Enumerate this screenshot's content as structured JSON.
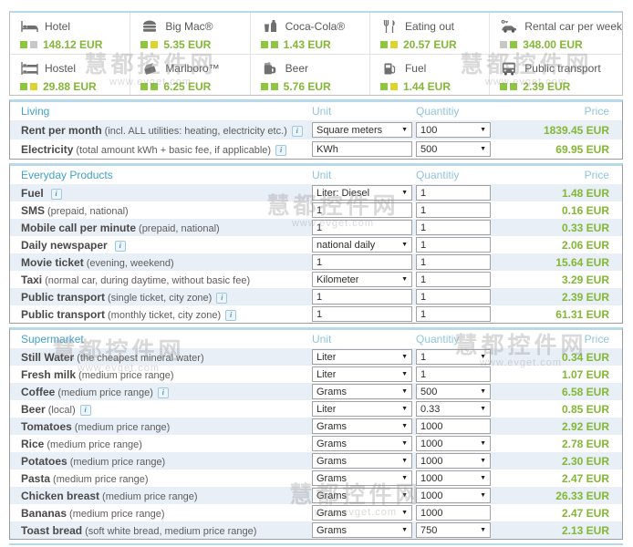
{
  "colors": {
    "green": "#8dc63f",
    "yellow": "#ded42e",
    "gray": "#c7c7c7",
    "price_green": "#83b735",
    "header_blue": "#44a0c9"
  },
  "tiles": [
    {
      "icon": "bed-icon",
      "name": "Hotel",
      "price": "148.12 EUR",
      "indicators": [
        "green",
        "gray"
      ]
    },
    {
      "icon": "burger-icon",
      "name": "Big Mac®",
      "price": "5.35 EUR",
      "indicators": [
        "green",
        "yellow"
      ]
    },
    {
      "icon": "cola-icon",
      "name": "Coca-Cola®",
      "price": "1.43 EUR",
      "indicators": [
        "green",
        "green"
      ]
    },
    {
      "icon": "cutlery-icon",
      "name": "Eating out",
      "price": "20.57 EUR",
      "indicators": [
        "green",
        "yellow"
      ]
    },
    {
      "icon": "car-icon",
      "name": "Rental car per week",
      "price": "348.00 EUR",
      "indicators": [
        "gray",
        "green"
      ]
    },
    {
      "icon": "bunkbed-icon",
      "name": "Hostel",
      "price": "29.88 EUR",
      "indicators": [
        "green",
        "yellow"
      ]
    },
    {
      "icon": "cigarettes-icon",
      "name": "Marlboro™",
      "price": "6.25 EUR",
      "indicators": [
        "green",
        "green"
      ]
    },
    {
      "icon": "beer-icon",
      "name": "Beer",
      "price": "5.76 EUR",
      "indicators": [
        "green",
        "green"
      ]
    },
    {
      "icon": "fuel-icon",
      "name": "Fuel",
      "price": "1.44 EUR",
      "indicators": [
        "green",
        "yellow"
      ]
    },
    {
      "icon": "bus-icon",
      "name": "Public transport",
      "price": "2.39 EUR",
      "indicators": [
        "green",
        "green"
      ]
    }
  ],
  "table_headers": {
    "unit": "Unit",
    "quantity": "Quantitiy",
    "price": "Price"
  },
  "sections": [
    {
      "title": "Living",
      "rows": [
        {
          "label": "Rent per month",
          "note": "(incl. ALL utilities: heating, electricity etc.)",
          "info": true,
          "unit_type": "select",
          "unit_value": "Square meters",
          "qty_type": "select",
          "qty_value": "100",
          "price": "1839.45 EUR"
        },
        {
          "label": "Electricity",
          "note": "(total amount kWh + basic fee, if applicable)",
          "info": true,
          "unit_type": "input",
          "unit_value": "KWh",
          "qty_type": "select",
          "qty_value": "500",
          "price": "69.95 EUR"
        }
      ]
    },
    {
      "title": "Everyday Products",
      "rows": [
        {
          "label": "Fuel",
          "note": "",
          "info": true,
          "unit_type": "select",
          "unit_value": "Liter: Diesel",
          "qty_type": "input",
          "qty_value": "1",
          "price": "1.48 EUR"
        },
        {
          "label": "SMS",
          "note": "(prepaid, national)",
          "info": false,
          "unit_type": "input",
          "unit_value": "1",
          "qty_type": "input",
          "qty_value": "1",
          "price": "0.16 EUR"
        },
        {
          "label": "Mobile call per minute",
          "note": "(prepaid, national)",
          "info": false,
          "unit_type": "input",
          "unit_value": "1",
          "qty_type": "input",
          "qty_value": "1",
          "price": "0.33 EUR"
        },
        {
          "label": "Daily newspaper",
          "note": "",
          "info": true,
          "unit_type": "select",
          "unit_value": "national daily",
          "qty_type": "input",
          "qty_value": "1",
          "price": "2.06 EUR"
        },
        {
          "label": "Movie ticket",
          "note": "(evening, weekend)",
          "info": false,
          "unit_type": "input",
          "unit_value": "1",
          "qty_type": "input",
          "qty_value": "1",
          "price": "15.64 EUR"
        },
        {
          "label": "Taxi",
          "note": "(normal car, during daytime, without basic fee)",
          "info": false,
          "unit_type": "select",
          "unit_value": "Kilometer",
          "qty_type": "input",
          "qty_value": "1",
          "price": "3.29 EUR"
        },
        {
          "label": "Public transport",
          "note": "(single ticket, city zone)",
          "info": true,
          "unit_type": "input",
          "unit_value": "1",
          "qty_type": "input",
          "qty_value": "1",
          "price": "2.39 EUR"
        },
        {
          "label": "Public transport",
          "note": "(monthly ticket, city zone)",
          "info": true,
          "unit_type": "input",
          "unit_value": "1",
          "qty_type": "input",
          "qty_value": "1",
          "price": "61.31 EUR"
        }
      ]
    },
    {
      "title": "Supermarket",
      "rows": [
        {
          "label": "Still Water",
          "note": "(the cheapest mineral water)",
          "info": false,
          "unit_type": "select",
          "unit_value": "Liter",
          "qty_type": "select",
          "qty_value": "1",
          "price": "0.34 EUR"
        },
        {
          "label": "Fresh milk",
          "note": "(medium price range)",
          "info": false,
          "unit_type": "select",
          "unit_value": "Liter",
          "qty_type": "input",
          "qty_value": "1",
          "price": "1.07 EUR"
        },
        {
          "label": "Coffee",
          "note": "(medium price range)",
          "info": true,
          "unit_type": "select",
          "unit_value": "Grams",
          "qty_type": "select",
          "qty_value": "500",
          "price": "6.58 EUR"
        },
        {
          "label": "Beer",
          "note": "(local)",
          "info": true,
          "unit_type": "select",
          "unit_value": "Liter",
          "qty_type": "select",
          "qty_value": "0.33",
          "price": "0.85 EUR"
        },
        {
          "label": "Tomatoes",
          "note": "(medium price range)",
          "info": false,
          "unit_type": "select",
          "unit_value": "Grams",
          "qty_type": "input",
          "qty_value": "1000",
          "price": "2.92 EUR"
        },
        {
          "label": "Rice",
          "note": "(medium price range)",
          "info": false,
          "unit_type": "select",
          "unit_value": "Grams",
          "qty_type": "select",
          "qty_value": "1000",
          "price": "2.78 EUR"
        },
        {
          "label": "Potatoes",
          "note": "(medium price range)",
          "info": false,
          "unit_type": "select",
          "unit_value": "Grams",
          "qty_type": "select",
          "qty_value": "1000",
          "price": "2.30 EUR"
        },
        {
          "label": "Pasta",
          "note": "(medium price range)",
          "info": false,
          "unit_type": "select",
          "unit_value": "Grams",
          "qty_type": "select",
          "qty_value": "1000",
          "price": "2.47 EUR"
        },
        {
          "label": "Chicken breast",
          "note": "(medium price range)",
          "info": false,
          "unit_type": "select",
          "unit_value": "Grams",
          "qty_type": "select",
          "qty_value": "1000",
          "price": "26.33 EUR"
        },
        {
          "label": "Bananas",
          "note": "(medium price range)",
          "info": false,
          "unit_type": "select",
          "unit_value": "Grams",
          "qty_type": "input",
          "qty_value": "1000",
          "price": "2.47 EUR"
        },
        {
          "label": "Toast bread",
          "note": "(soft white bread, medium price range)",
          "info": false,
          "unit_type": "select",
          "unit_value": "Grams",
          "qty_type": "select",
          "qty_value": "750",
          "price": "2.13 EUR"
        }
      ]
    }
  ],
  "watermark": {
    "line1": "慧都控件网",
    "line2": "www.evget.com"
  }
}
